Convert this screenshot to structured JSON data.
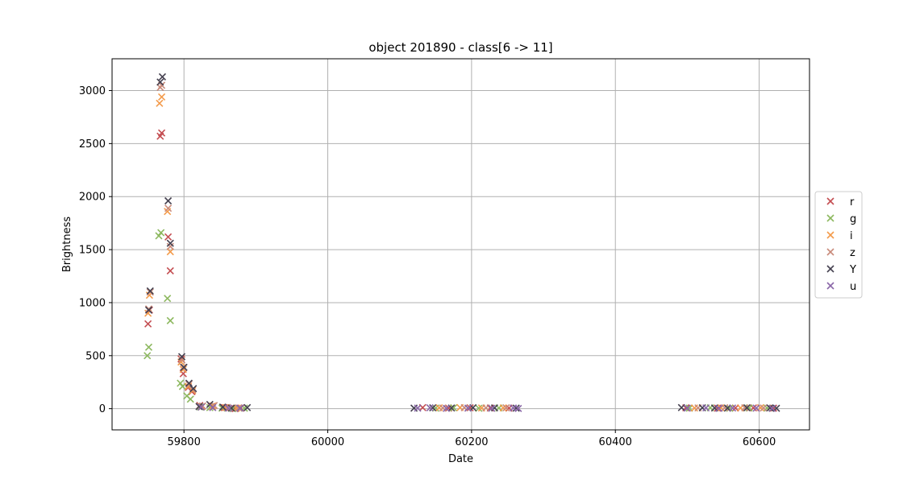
{
  "chart_data": {
    "type": "scatter",
    "title": "object 201890 - class[6 -> 11]",
    "xlabel": "Date",
    "ylabel": "Brightness",
    "xlim": [
      59700,
      60670
    ],
    "ylim": [
      -200,
      3300
    ],
    "x_ticks": [
      59800,
      60000,
      60200,
      60400,
      60600
    ],
    "y_ticks": [
      0,
      500,
      1000,
      1500,
      2000,
      2500,
      3000
    ],
    "grid": true,
    "legend_position": "center-right, outside plot",
    "marker": "x",
    "series": [
      {
        "name": "r",
        "color": "#c44e52",
        "points": [
          [
            59750,
            800
          ],
          [
            59752,
            930
          ],
          [
            59767,
            2570
          ],
          [
            59769,
            2600
          ],
          [
            59778,
            1620
          ],
          [
            59781,
            1300
          ],
          [
            59796,
            470
          ],
          [
            59799,
            330
          ],
          [
            59806,
            200
          ],
          [
            59811,
            160
          ],
          [
            59822,
            30
          ],
          [
            59838,
            20
          ],
          [
            59856,
            10
          ],
          [
            59871,
            0
          ],
          [
            59879,
            5
          ],
          [
            60132,
            10
          ],
          [
            60168,
            5
          ],
          [
            60198,
            8
          ],
          [
            60226,
            6
          ],
          [
            60252,
            5
          ],
          [
            60498,
            8
          ],
          [
            60542,
            5
          ],
          [
            60567,
            6
          ],
          [
            60592,
            7
          ],
          [
            60620,
            5
          ]
        ]
      },
      {
        "name": "g",
        "color": "#8db85f",
        "points": [
          [
            59749,
            500
          ],
          [
            59751,
            580
          ],
          [
            59765,
            1630
          ],
          [
            59768,
            1660
          ],
          [
            59777,
            1040
          ],
          [
            59781,
            830
          ],
          [
            59795,
            240
          ],
          [
            59798,
            210
          ],
          [
            59804,
            120
          ],
          [
            59809,
            90
          ],
          [
            59823,
            15
          ],
          [
            59836,
            10
          ],
          [
            59853,
            5
          ],
          [
            59868,
            0
          ],
          [
            59884,
            5
          ],
          [
            60150,
            5
          ],
          [
            60175,
            8
          ],
          [
            60210,
            4
          ],
          [
            60238,
            6
          ],
          [
            60503,
            5
          ],
          [
            60532,
            8
          ],
          [
            60559,
            4
          ],
          [
            60586,
            6
          ],
          [
            60611,
            5
          ]
        ]
      },
      {
        "name": "i",
        "color": "#f39b4b",
        "points": [
          [
            59750,
            900
          ],
          [
            59752,
            1070
          ],
          [
            59766,
            2880
          ],
          [
            59769,
            2940
          ],
          [
            59777,
            1860
          ],
          [
            59781,
            1480
          ],
          [
            59796,
            440
          ],
          [
            59799,
            370
          ],
          [
            59806,
            210
          ],
          [
            59812,
            170
          ],
          [
            59825,
            20
          ],
          [
            59840,
            25
          ],
          [
            59858,
            10
          ],
          [
            59873,
            5
          ],
          [
            60155,
            8
          ],
          [
            60184,
            10
          ],
          [
            60214,
            6
          ],
          [
            60244,
            7
          ],
          [
            60510,
            6
          ],
          [
            60547,
            8
          ],
          [
            60574,
            6
          ],
          [
            60602,
            9
          ]
        ]
      },
      {
        "name": "z",
        "color": "#c98a7a",
        "points": [
          [
            59751,
            940
          ],
          [
            59753,
            1100
          ],
          [
            59767,
            3030
          ],
          [
            59769,
            3050
          ],
          [
            59778,
            1890
          ],
          [
            59781,
            1530
          ],
          [
            59797,
            460
          ],
          [
            59799,
            390
          ],
          [
            59807,
            230
          ],
          [
            59812,
            180
          ],
          [
            59826,
            25
          ],
          [
            59842,
            30
          ],
          [
            59860,
            12
          ],
          [
            59876,
            8
          ],
          [
            60160,
            6
          ],
          [
            60190,
            9
          ],
          [
            60220,
            7
          ],
          [
            60248,
            8
          ],
          [
            60515,
            7
          ],
          [
            60552,
            9
          ],
          [
            60580,
            8
          ],
          [
            60606,
            6
          ]
        ]
      },
      {
        "name": "Y",
        "color": "#454150",
        "points": [
          [
            59751,
            930
          ],
          [
            59753,
            1110
          ],
          [
            59767,
            3080
          ],
          [
            59770,
            3130
          ],
          [
            59778,
            1960
          ],
          [
            59781,
            1560
          ],
          [
            59797,
            490
          ],
          [
            59800,
            390
          ],
          [
            59807,
            240
          ],
          [
            59813,
            190
          ],
          [
            59821,
            20
          ],
          [
            59836,
            40
          ],
          [
            59854,
            15
          ],
          [
            59866,
            5
          ],
          [
            59888,
            10
          ],
          [
            60120,
            5
          ],
          [
            60146,
            8
          ],
          [
            60172,
            6
          ],
          [
            60202,
            9
          ],
          [
            60232,
            7
          ],
          [
            60262,
            5
          ],
          [
            60492,
            10
          ],
          [
            60521,
            8
          ],
          [
            60538,
            6
          ],
          [
            60556,
            5
          ],
          [
            60583,
            8
          ],
          [
            60615,
            7
          ],
          [
            60624,
            4
          ]
        ]
      },
      {
        "name": "u",
        "color": "#8a67a8",
        "points": [
          [
            59824,
            15
          ],
          [
            59840,
            10
          ],
          [
            59862,
            5
          ],
          [
            59878,
            5
          ],
          [
            60125,
            5
          ],
          [
            60142,
            8
          ],
          [
            60165,
            3
          ],
          [
            60195,
            5
          ],
          [
            60228,
            4
          ],
          [
            60258,
            6
          ],
          [
            60265,
            2
          ],
          [
            60500,
            5
          ],
          [
            60526,
            7
          ],
          [
            60544,
            3
          ],
          [
            60563,
            6
          ],
          [
            60596,
            5
          ],
          [
            60618,
            3
          ]
        ]
      }
    ]
  }
}
